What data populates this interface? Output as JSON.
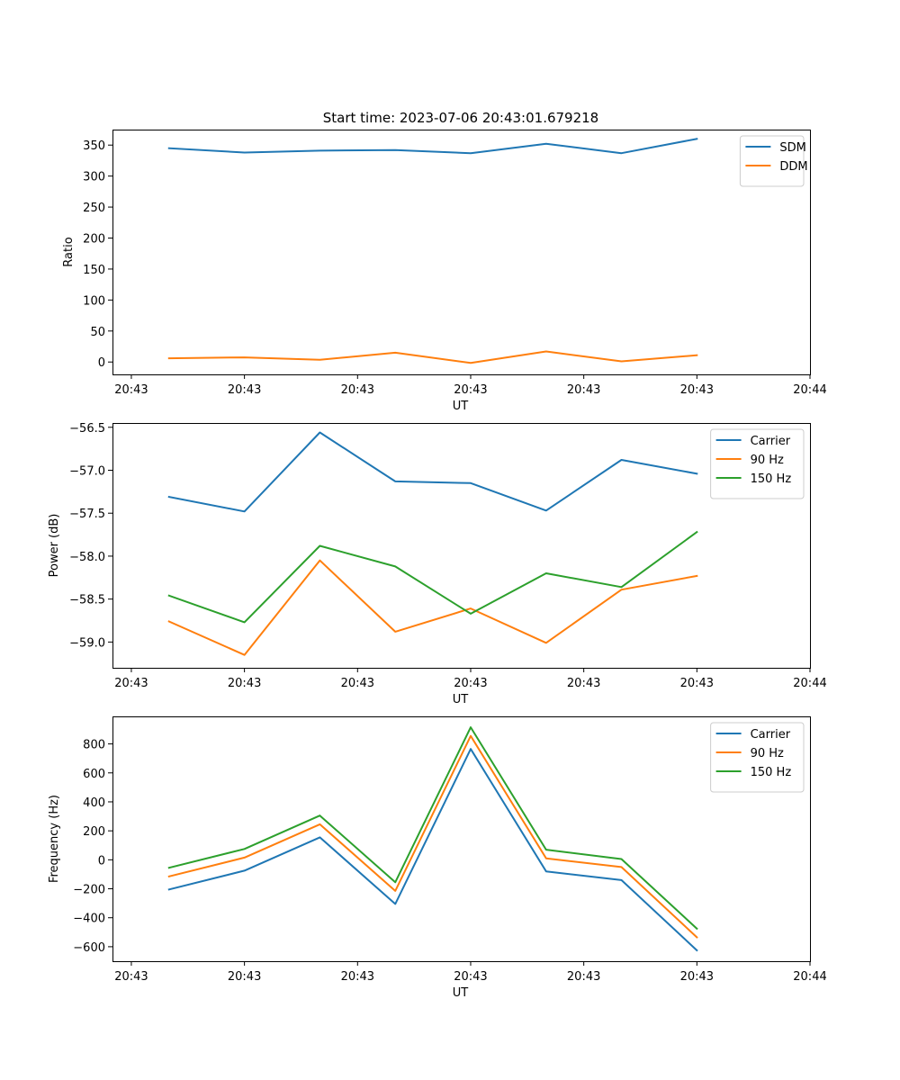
{
  "figure_title": "Start time: 2023-07-06 20:43:01.679218",
  "colors": {
    "blue": "#1f77b4",
    "orange": "#ff7f0e",
    "green": "#2ca02c"
  },
  "chart_data": [
    {
      "type": "line",
      "title": "Start time: 2023-07-06 20:43:01.679218",
      "xlabel": "UT",
      "ylabel": "Ratio",
      "x": [
        1,
        2,
        3,
        4,
        5,
        6,
        7,
        8
      ],
      "xlim": [
        0.25,
        9.5
      ],
      "xticks": [
        0.5,
        2,
        3.5,
        5,
        6.5,
        8,
        9.5
      ],
      "xtick_labels": [
        "20:43",
        "20:43",
        "20:43",
        "20:43",
        "20:43",
        "20:43",
        "20:44"
      ],
      "ylim": [
        -20,
        375
      ],
      "yticks": [
        0,
        50,
        100,
        150,
        200,
        250,
        300,
        350
      ],
      "ytick_labels": [
        "0",
        "50",
        "100",
        "150",
        "200",
        "250",
        "300",
        "350"
      ],
      "legend_position": "top-right",
      "series": [
        {
          "name": "SDM",
          "color": "#1f77b4",
          "values": [
            345,
            338,
            341,
            342,
            337,
            352,
            337,
            360
          ]
        },
        {
          "name": "DDM",
          "color": "#ff7f0e",
          "values": [
            6,
            7.5,
            3.5,
            15,
            -1.5,
            17,
            1,
            11
          ]
        }
      ]
    },
    {
      "type": "line",
      "title": "",
      "xlabel": "UT",
      "ylabel": "Power (dB)",
      "x": [
        1,
        2,
        3,
        4,
        5,
        6,
        7,
        8
      ],
      "xlim": [
        0.25,
        9.5
      ],
      "xticks": [
        0.5,
        2,
        3.5,
        5,
        6.5,
        8,
        9.5
      ],
      "xtick_labels": [
        "20:43",
        "20:43",
        "20:43",
        "20:43",
        "20:43",
        "20:43",
        "20:44"
      ],
      "ylim": [
        -59.3,
        -56.45
      ],
      "yticks": [
        -59.0,
        -58.5,
        -58.0,
        -57.5,
        -57.0,
        -56.5
      ],
      "ytick_labels": [
        "−59.0",
        "−58.5",
        "−58.0",
        "−57.5",
        "−57.0",
        "−56.5"
      ],
      "legend_position": "top-right",
      "series": [
        {
          "name": "Carrier",
          "color": "#1f77b4",
          "values": [
            -57.31,
            -57.48,
            -56.56,
            -57.13,
            -57.15,
            -57.47,
            -56.88,
            -57.04
          ]
        },
        {
          "name": "90 Hz",
          "color": "#ff7f0e",
          "values": [
            -58.76,
            -59.15,
            -58.05,
            -58.88,
            -58.61,
            -59.01,
            -58.39,
            -58.23
          ]
        },
        {
          "name": "150 Hz",
          "color": "#2ca02c",
          "values": [
            -58.46,
            -58.77,
            -57.88,
            -58.12,
            -58.67,
            -58.2,
            -58.36,
            -57.72
          ]
        }
      ]
    },
    {
      "type": "line",
      "title": "",
      "xlabel": "UT",
      "ylabel": "Frequency (Hz)",
      "x": [
        1,
        2,
        3,
        4,
        5,
        6,
        7,
        8
      ],
      "xlim": [
        0.25,
        9.5
      ],
      "xticks": [
        0.5,
        2,
        3.5,
        5,
        6.5,
        8,
        9.5
      ],
      "xtick_labels": [
        "20:43",
        "20:43",
        "20:43",
        "20:43",
        "20:43",
        "20:43",
        "20:44"
      ],
      "ylim": [
        -700,
        990
      ],
      "yticks": [
        -600,
        -400,
        -200,
        0,
        200,
        400,
        600,
        800
      ],
      "ytick_labels": [
        "−600",
        "−400",
        "−200",
        "0",
        "200",
        "400",
        "600",
        "800"
      ],
      "legend_position": "top-right",
      "series": [
        {
          "name": "Carrier",
          "color": "#1f77b4",
          "values": [
            -205,
            -75,
            155,
            -305,
            765,
            -80,
            -140,
            -625
          ]
        },
        {
          "name": "90 Hz",
          "color": "#ff7f0e",
          "values": [
            -115,
            15,
            245,
            -215,
            855,
            10,
            -50,
            -535
          ]
        },
        {
          "name": "150 Hz",
          "color": "#2ca02c",
          "values": [
            -55,
            75,
            305,
            -155,
            915,
            70,
            5,
            -475
          ]
        }
      ]
    }
  ]
}
